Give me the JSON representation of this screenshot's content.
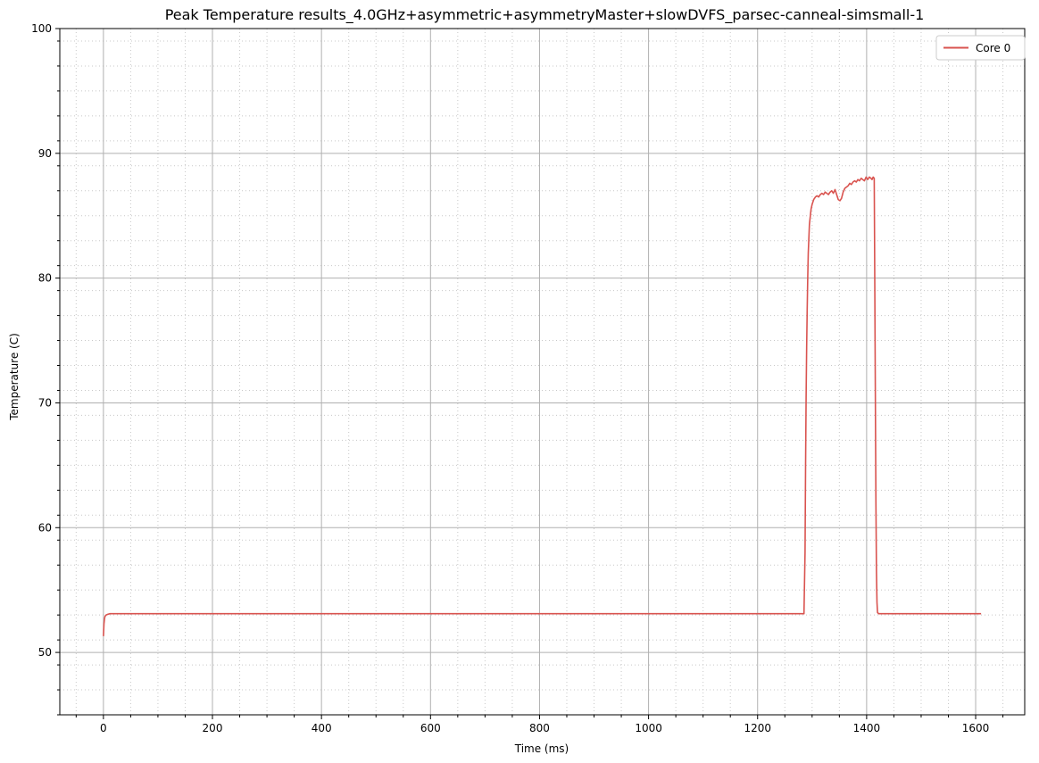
{
  "chart_data": {
    "type": "line",
    "title": "Peak Temperature results_4.0GHz+asymmetric+asymmetryMaster+slowDVFS_parsec-canneal-simsmall-1",
    "xlabel": "Time (ms)",
    "ylabel": "Temperature (C)",
    "xlim": [
      -80,
      1690
    ],
    "ylim": [
      45,
      100
    ],
    "x_ticks": [
      0,
      200,
      400,
      600,
      800,
      1000,
      1200,
      1400,
      1600
    ],
    "y_ticks": [
      50,
      60,
      70,
      80,
      90,
      100
    ],
    "x_tick_labels": [
      "0",
      "200",
      "400",
      "600",
      "800",
      "1000",
      "1200",
      "1400",
      "1600"
    ],
    "y_tick_labels": [
      "50",
      "60",
      "70",
      "80",
      "90",
      "100"
    ],
    "grid": true,
    "minor_grid": true,
    "legend_position": "top-right",
    "series": [
      {
        "name": "Core 0",
        "color": "#d9534f",
        "x": [
          0,
          1,
          2,
          3,
          5,
          8,
          12,
          20,
          100,
          400,
          800,
          1200,
          1285,
          1287,
          1288,
          1289,
          1290,
          1291,
          1292,
          1293,
          1295,
          1298,
          1300,
          1303,
          1306,
          1309,
          1312,
          1315,
          1318,
          1321,
          1324,
          1327,
          1330,
          1333,
          1336,
          1339,
          1342,
          1345,
          1348,
          1351,
          1354,
          1357,
          1360,
          1363,
          1366,
          1369,
          1372,
          1375,
          1378,
          1381,
          1384,
          1387,
          1390,
          1393,
          1396,
          1399,
          1402,
          1405,
          1408,
          1410,
          1412,
          1414,
          1415,
          1416,
          1417,
          1418,
          1419,
          1420,
          1422,
          1430,
          1500,
          1610
        ],
        "values": [
          51.3,
          52.3,
          52.7,
          52.9,
          53.0,
          53.05,
          53.1,
          53.1,
          53.1,
          53.1,
          53.1,
          53.1,
          53.1,
          58.0,
          65.0,
          70.5,
          74.5,
          77.5,
          80.0,
          82.0,
          84.3,
          85.5,
          85.9,
          86.3,
          86.5,
          86.6,
          86.5,
          86.7,
          86.8,
          86.7,
          86.9,
          86.8,
          86.7,
          86.9,
          87.0,
          86.8,
          87.1,
          86.7,
          86.3,
          86.2,
          86.4,
          86.9,
          87.2,
          87.3,
          87.4,
          87.6,
          87.5,
          87.7,
          87.8,
          87.7,
          87.9,
          87.8,
          88.0,
          87.9,
          87.8,
          88.1,
          87.9,
          88.1,
          88.0,
          87.9,
          88.1,
          88.0,
          80.0,
          70.0,
          62.0,
          56.5,
          54.0,
          53.2,
          53.1,
          53.1,
          53.1,
          53.1
        ]
      }
    ]
  }
}
